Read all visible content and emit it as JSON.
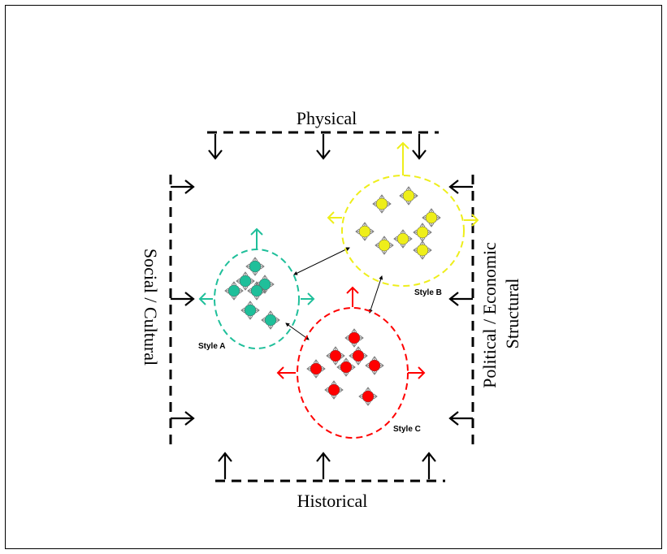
{
  "labels": {
    "top": "Physical",
    "bottom": "Historical",
    "left": "Social / Cultural",
    "right_line1": "Political / Economic",
    "right_line2": "Structural"
  },
  "clusters": [
    {
      "id": "a",
      "label": "Style A",
      "color": "#1fbf9a",
      "dot_count": 7
    },
    {
      "id": "b",
      "label": "Style B",
      "color": "#eeee1a",
      "dot_count": 8
    },
    {
      "id": "c",
      "label": "Style C",
      "color": "#ff0000",
      "dot_count": 8
    }
  ],
  "colors": {
    "frame": "#000000",
    "connector": "#000000"
  }
}
